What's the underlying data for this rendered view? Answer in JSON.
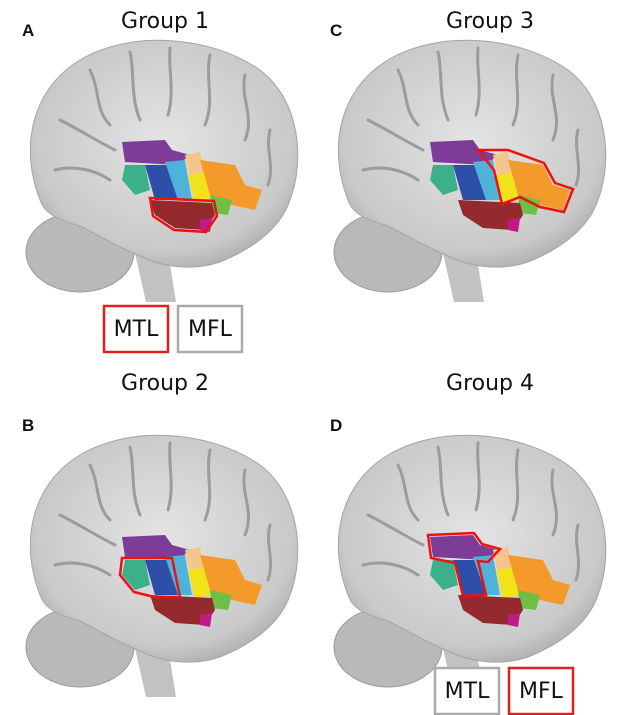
{
  "panels": [
    {
      "letter": "A",
      "title": "Group 1"
    },
    {
      "letter": "B",
      "title": "Group 2"
    },
    {
      "letter": "C",
      "title": "Group 3"
    },
    {
      "letter": "D",
      "title": "Group 4"
    }
  ],
  "legends": [
    {
      "items": [
        "MTL",
        "MFL"
      ]
    },
    {
      "items": [
        "MTL",
        "MFL"
      ]
    }
  ]
}
